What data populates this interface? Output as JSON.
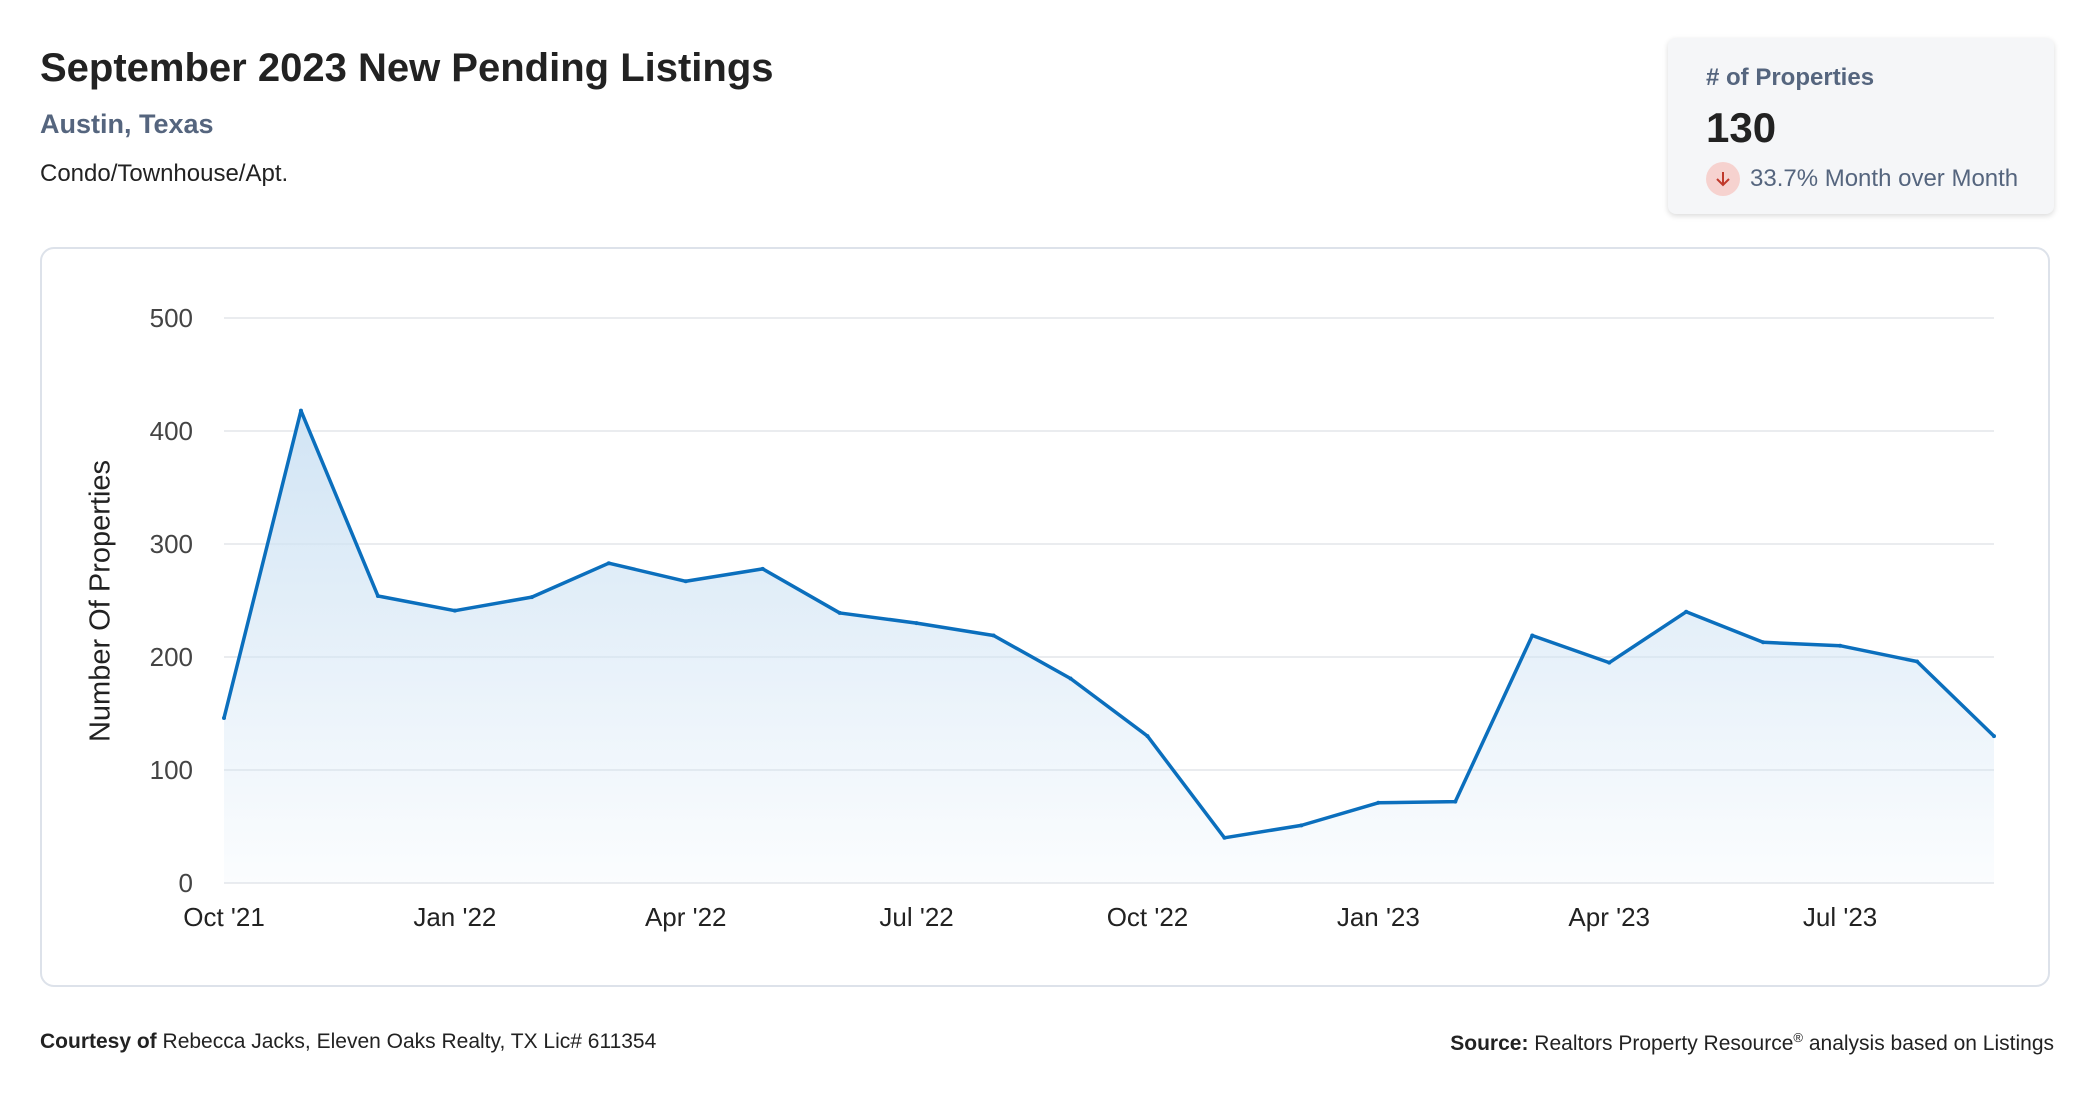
{
  "header": {
    "title": "September 2023 New Pending Listings",
    "subtitle": "Austin, Texas",
    "category": "Condo/Townhouse/Apt."
  },
  "kpi": {
    "label": "# of Properties",
    "value": "130",
    "change": "33.7% Month over Month",
    "direction_icon": "arrow-down-icon"
  },
  "footer": {
    "courtesy_label": "Courtesy of",
    "courtesy_text": "Rebecca Jacks, Eleven Oaks Realty, TX Lic# 611354",
    "source_label": "Source:",
    "source_name": "Realtors Property Resource",
    "source_mark": "®",
    "source_text": "analysis based on Listings"
  },
  "colors": {
    "line": "#0b6fbd",
    "area_top": "#cfe3f4",
    "grid": "#e3e6ea",
    "text": "#222222",
    "muted": "#55657e",
    "down_badge": "#f6d2cf",
    "down_arrow": "#c0392b"
  },
  "chart_data": {
    "type": "area",
    "x": [
      "Oct '21",
      "Nov '21",
      "Dec '21",
      "Jan '22",
      "Feb '22",
      "Mar '22",
      "Apr '22",
      "May '22",
      "Jun '22",
      "Jul '22",
      "Aug '22",
      "Sep '22",
      "Oct '22",
      "Nov '22",
      "Dec '22",
      "Jan '23",
      "Feb '23",
      "Mar '23",
      "Apr '23",
      "May '23",
      "Jun '23",
      "Jul '23",
      "Aug '23",
      "Sep '23"
    ],
    "series": [
      {
        "values": [
          146,
          418,
          254,
          241,
          253,
          283,
          267,
          278,
          239,
          230,
          219,
          181,
          130,
          40,
          51,
          71,
          72,
          219,
          195,
          240,
          213,
          210,
          196,
          130
        ]
      }
    ],
    "xticks": [
      "Oct '21",
      "Jan '22",
      "Apr '22",
      "Jul '22",
      "Oct '22",
      "Jan '23",
      "Apr '23",
      "Jul '23"
    ],
    "yticks": [
      0,
      100,
      200,
      300,
      400,
      500
    ],
    "ylim": [
      0,
      500
    ],
    "xlabel": "",
    "ylabel": "Number Of Properties",
    "grid": true,
    "legend": "none"
  }
}
